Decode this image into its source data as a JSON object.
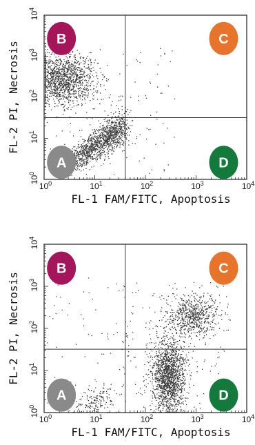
{
  "colors": {
    "quadrant_a": "#8a8a8a",
    "quadrant_b": "#a5155a",
    "quadrant_c": "#e8732a",
    "quadrant_d": "#137a3c",
    "points": "#3a3a3a",
    "gate": "#333333"
  },
  "chart_data": [
    {
      "type": "scatter",
      "xlabel": "FL-1 FAM/FITC, Apoptosis",
      "ylabel": "FL-2 PI, Necrosis",
      "xscale": "log",
      "yscale": "log",
      "xlim": [
        1,
        10000
      ],
      "ylim": [
        1,
        10000
      ],
      "x_ticks": [
        {
          "base": "10",
          "exp": "0"
        },
        {
          "base": "10",
          "exp": "1"
        },
        {
          "base": "10",
          "exp": "2"
        },
        {
          "base": "10",
          "exp": "3"
        },
        {
          "base": "10",
          "exp": "4"
        }
      ],
      "y_ticks": [
        {
          "base": "10",
          "exp": "0"
        },
        {
          "base": "10",
          "exp": "1"
        },
        {
          "base": "10",
          "exp": "2"
        },
        {
          "base": "10",
          "exp": "3"
        },
        {
          "base": "10",
          "exp": "4"
        }
      ],
      "gates": {
        "x": 40,
        "y": 32
      },
      "quadrants": [
        {
          "label": "B",
          "color_key": "quadrant_b",
          "x": 2.2,
          "y": 2700
        },
        {
          "label": "C",
          "color_key": "quadrant_c",
          "x": 3500,
          "y": 2700
        },
        {
          "label": "A",
          "color_key": "quadrant_a",
          "x": 2.2,
          "y": 2.6
        },
        {
          "label": "D",
          "color_key": "quadrant_d",
          "x": 3500,
          "y": 2.6
        }
      ],
      "populations": [
        {
          "name": "upper-left",
          "n": 1400,
          "shape": "blob",
          "cx": 0.35,
          "cy": 2.45,
          "sx": 0.33,
          "sy": 0.3,
          "rot": 0
        },
        {
          "name": "lower-diagonal",
          "n": 1300,
          "shape": "diag",
          "x0": 0.3,
          "y0": 0.22,
          "x1": 1.55,
          "y1": 1.3,
          "spread": 0.22,
          "skew": 0.6
        },
        {
          "name": "scatter",
          "n": 140,
          "shape": "uniform",
          "xmin": 0.0,
          "xmax": 2.6,
          "ymin": 0.1,
          "ymax": 3.2
        }
      ]
    },
    {
      "type": "scatter",
      "xlabel": "FL-1 FAM/FITC, Apoptosis",
      "ylabel": "FL-2 PI, Necrosis",
      "xscale": "log",
      "yscale": "log",
      "xlim": [
        1,
        10000
      ],
      "ylim": [
        1,
        10000
      ],
      "x_ticks": [
        {
          "base": "10",
          "exp": "0"
        },
        {
          "base": "10",
          "exp": "1"
        },
        {
          "base": "10",
          "exp": "2"
        },
        {
          "base": "10",
          "exp": "3"
        },
        {
          "base": "10",
          "exp": "4"
        }
      ],
      "y_ticks": [
        {
          "base": "10",
          "exp": "0"
        },
        {
          "base": "10",
          "exp": "1"
        },
        {
          "base": "10",
          "exp": "2"
        },
        {
          "base": "10",
          "exp": "3"
        },
        {
          "base": "10",
          "exp": "4"
        }
      ],
      "gates": {
        "x": 40,
        "y": 32
      },
      "quadrants": [
        {
          "label": "B",
          "color_key": "quadrant_b",
          "x": 2.2,
          "y": 2700
        },
        {
          "label": "C",
          "color_key": "quadrant_c",
          "x": 3500,
          "y": 2700
        },
        {
          "label": "A",
          "color_key": "quadrant_a",
          "x": 2.2,
          "y": 2.6
        },
        {
          "label": "D",
          "color_key": "quadrant_d",
          "x": 3500,
          "y": 2.6
        }
      ],
      "populations": [
        {
          "name": "lower-right",
          "n": 1500,
          "shape": "blob",
          "cx": 2.45,
          "cy": 0.85,
          "sx": 0.17,
          "sy": 0.45,
          "rot": 0
        },
        {
          "name": "upper-right",
          "n": 650,
          "shape": "blob",
          "cx": 2.95,
          "cy": 2.3,
          "sx": 0.25,
          "sy": 0.25,
          "rot": 0
        },
        {
          "name": "lower-left",
          "n": 150,
          "shape": "blob",
          "cx": 1.0,
          "cy": 0.28,
          "sx": 0.22,
          "sy": 0.16,
          "rot": 0.5
        },
        {
          "name": "scatter",
          "n": 200,
          "shape": "uniform",
          "xmin": 1.4,
          "xmax": 3.6,
          "ymin": 0.0,
          "ymax": 3.1
        },
        {
          "name": "sparse",
          "n": 60,
          "shape": "uniform",
          "xmin": 0.0,
          "xmax": 1.6,
          "ymin": 0.0,
          "ymax": 3.4
        }
      ]
    }
  ]
}
